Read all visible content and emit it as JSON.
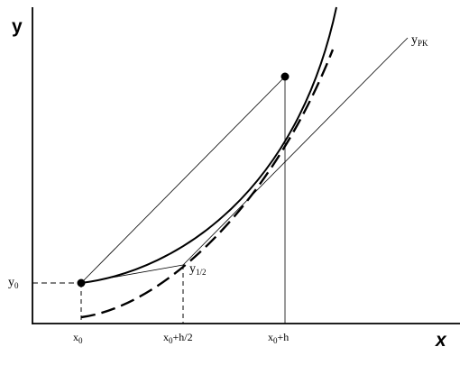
{
  "axes": {
    "y_title": "y",
    "x_title": "x"
  },
  "labels": {
    "y0": {
      "base": "y",
      "sub": "0"
    },
    "y_half": {
      "base": "y",
      "sub": "1/2"
    },
    "y_rk": {
      "base": "y",
      "sub": "PK"
    },
    "x0": {
      "base": "x",
      "sub": "0"
    },
    "x0_h2": {
      "base": "x",
      "sub": "0",
      "rest": "+h/2"
    },
    "x0_h": {
      "base": "x",
      "sub": "0",
      "rest": "+h"
    }
  }
}
